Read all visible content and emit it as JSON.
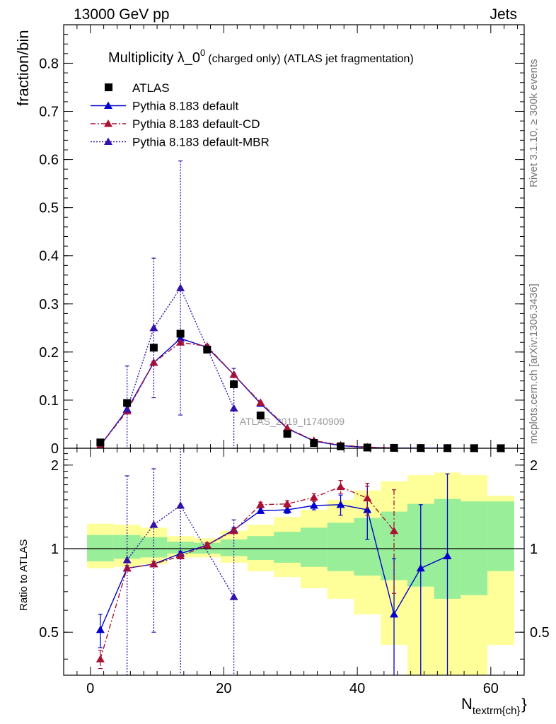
{
  "header": {
    "energy": "13000 GeV pp",
    "process": "Jets"
  },
  "side_labels": {
    "rivet": "Rivet 3.1.10, ≥ 300k events",
    "mcplots": "mcplots.cern.ch [arXiv:1306.3436]"
  },
  "watermark": "ATLAS_2019_I1740909",
  "chart_data": [
    {
      "type": "scatter",
      "panel": "main",
      "title_main": "Multiplicity λ_0",
      "title_sup": "0",
      "title_rest": "(charged only) (ATLAS jet fragmentation)",
      "ylabel": "fraction/bin",
      "xlabel_main": "N",
      "xlabel_sub": "textrm{ch}",
      "xlabel_brace": "}",
      "xlim": [
        -4,
        65
      ],
      "ylim": [
        0,
        0.88
      ],
      "yticks": [
        0,
        0.1,
        0.2,
        0.3,
        0.4,
        0.5,
        0.6,
        0.7,
        0.8
      ],
      "ytick_labels": [
        "0",
        "0.1",
        "0.2",
        "0.3",
        "0.4",
        "0.5",
        "0.6",
        "0.7",
        "0.8"
      ],
      "xticks": [
        0,
        20,
        40,
        60
      ],
      "xtick_labels": [
        "0",
        "20",
        "40",
        "60"
      ],
      "legend_position": "top-left",
      "series": [
        {
          "name": "ATLAS",
          "style": "data",
          "color": "#000000",
          "x": [
            1.5,
            5.5,
            9.5,
            13.5,
            17.5,
            21.5,
            25.5,
            29.5,
            33.5,
            37.5,
            41.5,
            45.5,
            49.5,
            53.5,
            57.5,
            61.5
          ],
          "y": [
            0.012,
            0.094,
            0.209,
            0.238,
            0.205,
            0.133,
            0.068,
            0.03,
            0.011,
            0.004,
            0.0015,
            0.0008,
            0.0005,
            0.0003,
            0.0002,
            0.0001
          ]
        },
        {
          "name": "Pythia 8.183 default",
          "style": "solid",
          "color": "#0000cc",
          "x": [
            1.5,
            5.5,
            9.5,
            13.5,
            17.5,
            21.5,
            25.5,
            29.5,
            33.5,
            37.5,
            41.5,
            45.5,
            49.5,
            53.5
          ],
          "y": [
            0.006,
            0.08,
            0.178,
            0.228,
            0.21,
            0.153,
            0.093,
            0.041,
            0.015,
            0.0055,
            0.0018,
            0.0005,
            0.0004,
            0.0003
          ],
          "err": [
            0.001,
            0.002,
            0.003,
            0.004,
            0.004,
            0.003,
            0.002,
            0.001,
            0.001,
            0.0005,
            0.0003,
            0.0002,
            0.0002,
            0.0002
          ]
        },
        {
          "name": "Pythia 8.183 default-CD",
          "style": "dashdot",
          "color": "#aa1133",
          "x": [
            1.5,
            5.5,
            9.5,
            13.5,
            17.5,
            21.5,
            25.5,
            29.5,
            33.5,
            37.5,
            41.5,
            45.5
          ],
          "y": [
            0.006,
            0.077,
            0.178,
            0.22,
            0.212,
            0.153,
            0.095,
            0.042,
            0.016,
            0.0065,
            0.0022,
            0.0009
          ],
          "err": [
            0.001,
            0.002,
            0.003,
            0.004,
            0.004,
            0.003,
            0.002,
            0.001,
            0.001,
            0.0005,
            0.0003,
            0.0002
          ]
        },
        {
          "name": "Pythia 8.183 default-MBR",
          "style": "dotted",
          "color": "#3311aa",
          "x": [
            5.5,
            9.5,
            13.5,
            21.5
          ],
          "y": [
            0.081,
            0.25,
            0.333,
            0.083
          ],
          "err": [
            0.09,
            0.145,
            0.264,
            0.083
          ]
        }
      ]
    },
    {
      "type": "scatter",
      "panel": "ratio",
      "ylabel": "Ratio to ATLAS",
      "xlim": [
        -4,
        65
      ],
      "ylim": [
        0.35,
        2.3
      ],
      "yticks": [
        0.5,
        1,
        2
      ],
      "ytick_labels": [
        "0.5",
        "1",
        "2"
      ],
      "band_edges": [
        -0.5,
        3.5,
        7.5,
        11.5,
        15.5,
        19.5,
        23.5,
        27.5,
        31.5,
        35.5,
        39.5,
        43.5,
        47.5,
        51.5,
        55.5,
        59.5,
        63.5
      ],
      "band_green": [
        [
          0.9,
          1.12
        ],
        [
          0.92,
          1.12
        ],
        [
          0.93,
          1.1
        ],
        [
          0.96,
          1.06
        ],
        [
          0.96,
          1.05
        ],
        [
          0.94,
          1.08
        ],
        [
          0.91,
          1.11
        ],
        [
          0.89,
          1.15
        ],
        [
          0.86,
          1.19
        ],
        [
          0.83,
          1.24
        ],
        [
          0.8,
          1.29
        ],
        [
          0.77,
          1.36
        ],
        [
          0.73,
          1.45
        ],
        [
          0.66,
          1.51
        ],
        [
          0.68,
          1.48
        ],
        [
          0.83,
          1.48
        ]
      ],
      "band_yellow": [
        [
          0.85,
          1.23
        ],
        [
          0.86,
          1.22
        ],
        [
          0.88,
          1.19
        ],
        [
          0.93,
          1.11
        ],
        [
          0.93,
          1.09
        ],
        [
          0.89,
          1.16
        ],
        [
          0.83,
          1.22
        ],
        [
          0.79,
          1.3
        ],
        [
          0.72,
          1.38
        ],
        [
          0.66,
          1.5
        ],
        [
          0.58,
          1.62
        ],
        [
          0.45,
          1.75
        ],
        [
          0.3,
          1.84
        ],
        [
          0.3,
          1.88
        ],
        [
          0.3,
          1.84
        ],
        [
          0.45,
          1.55
        ]
      ],
      "series": [
        {
          "name": "Pythia 8.183 default",
          "style": "solid",
          "color": "#0000cc",
          "x": [
            1.5,
            5.5,
            9.5,
            13.5,
            17.5,
            21.5,
            25.5,
            29.5,
            33.5,
            37.5,
            41.5,
            45.5,
            49.5,
            53.5
          ],
          "y": [
            0.51,
            0.85,
            0.88,
            0.96,
            1.03,
            1.17,
            1.37,
            1.38,
            1.43,
            1.44,
            1.38,
            0.58,
            0.85,
            0.94
          ],
          "err": [
            0.07,
            0.02,
            0.02,
            0.02,
            0.02,
            0.02,
            0.03,
            0.04,
            0.05,
            0.12,
            0.3,
            0.34,
            0.59,
            0.92
          ]
        },
        {
          "name": "Pythia 8.183 default-CD",
          "style": "dashdot",
          "color": "#aa1133",
          "x": [
            1.5,
            5.5,
            9.5,
            13.5,
            17.5,
            21.5,
            25.5,
            29.5,
            33.5,
            37.5,
            41.5,
            45.5
          ],
          "y": [
            0.4,
            0.85,
            0.88,
            0.94,
            1.03,
            1.16,
            1.44,
            1.45,
            1.53,
            1.67,
            1.52,
            1.16
          ],
          "err": [
            0.03,
            0.02,
            0.02,
            0.02,
            0.02,
            0.02,
            0.03,
            0.04,
            0.05,
            0.09,
            0.2,
            0.47
          ]
        },
        {
          "name": "Pythia 8.183 default-MBR",
          "style": "dotted",
          "color": "#3311aa",
          "x": [
            5.5,
            9.5,
            13.5,
            21.5
          ],
          "y": [
            0.91,
            1.22,
            1.43,
            0.67
          ],
          "err": [
            0.92,
            0.72,
            1.1,
            0.6
          ]
        }
      ]
    }
  ]
}
